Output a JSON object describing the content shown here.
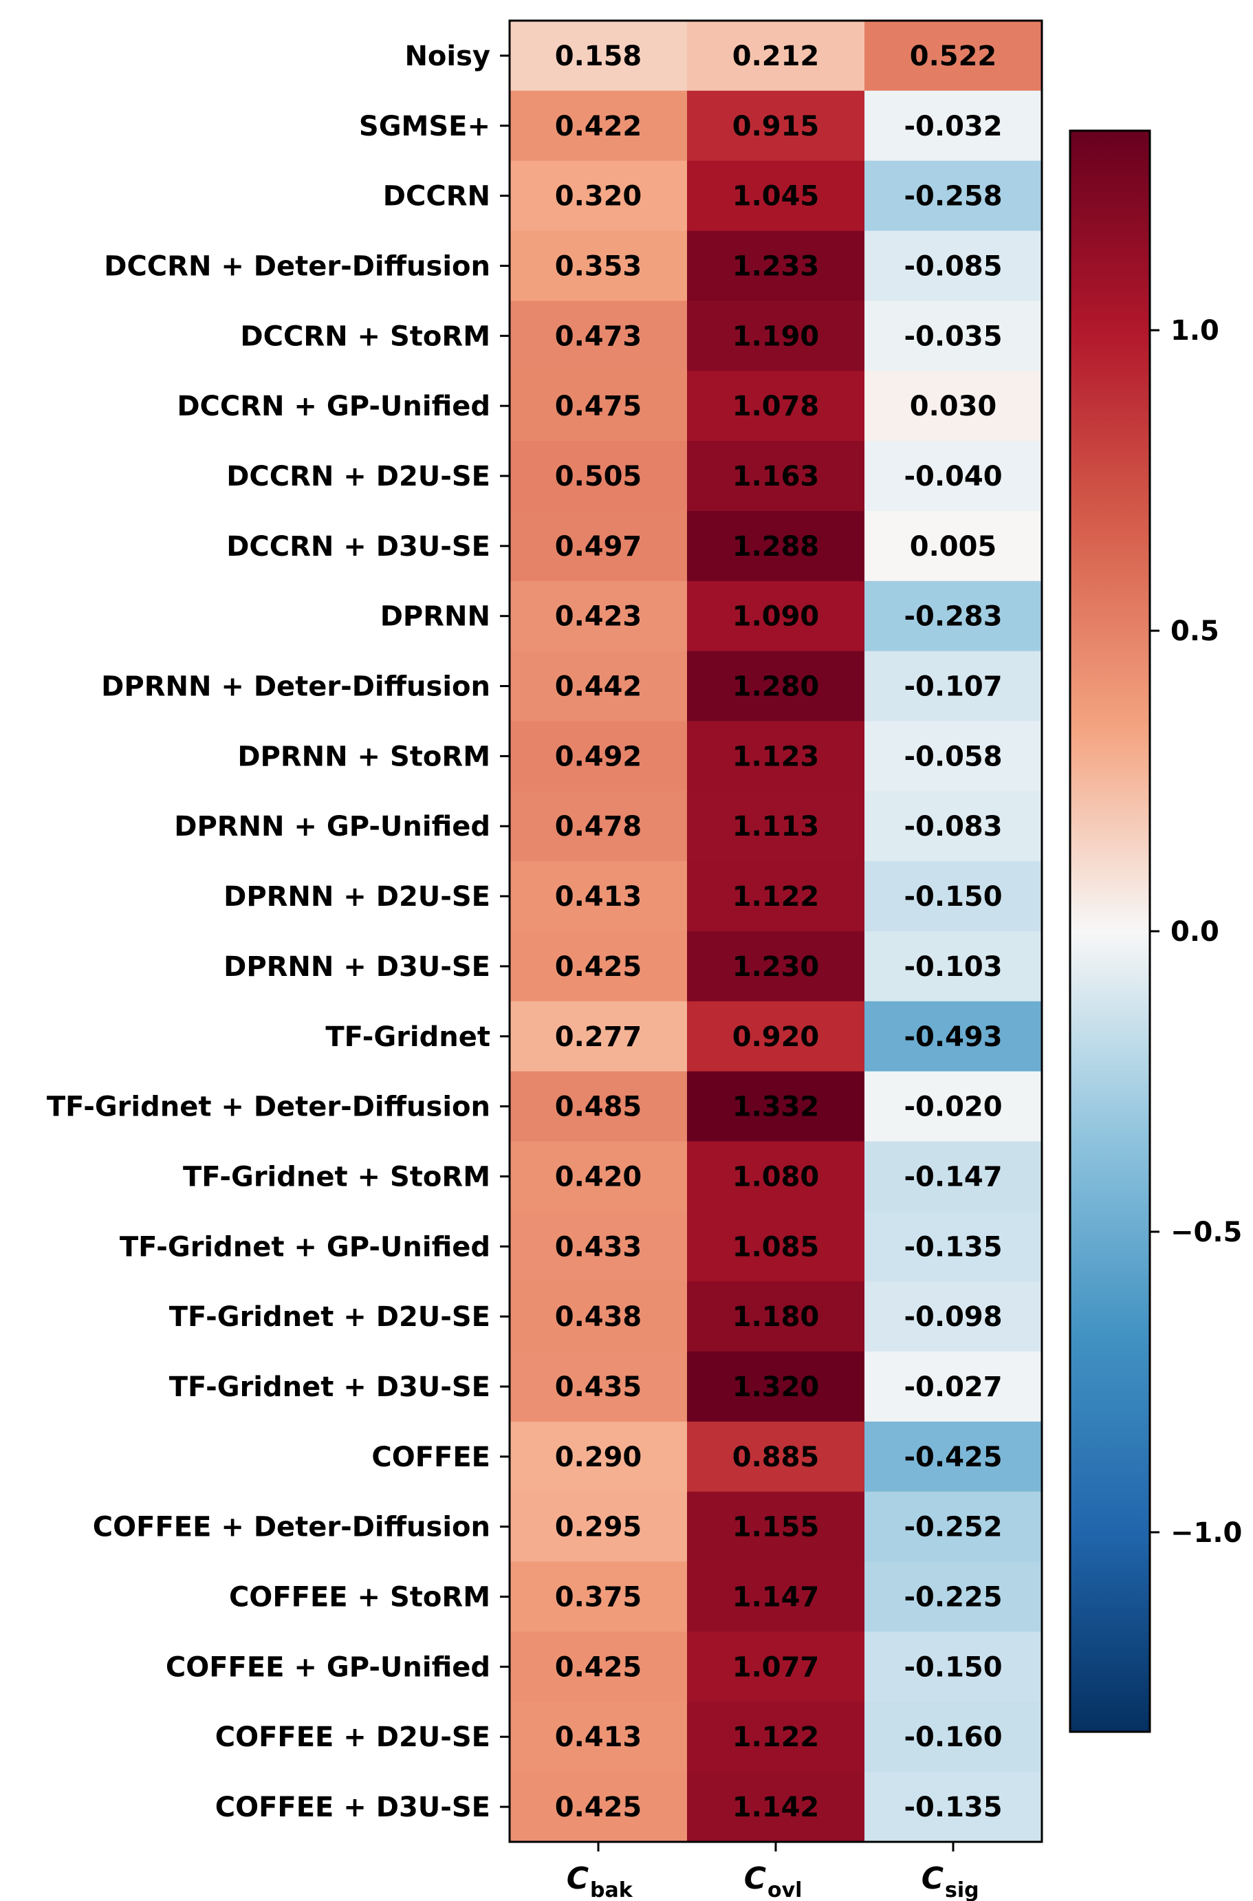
{
  "chart_data": {
    "type": "heatmap",
    "rows": [
      "Noisy",
      "SGMSE+",
      "DCCRN",
      "DCCRN + Deter-Diffusion",
      "DCCRN + StoRM",
      "DCCRN + GP-Unified",
      "DCCRN + D2U-SE",
      "DCCRN + D3U-SE",
      "DPRNN",
      "DPRNN + Deter-Diffusion",
      "DPRNN + StoRM",
      "DPRNN + GP-Unified",
      "DPRNN + D2U-SE",
      "DPRNN + D3U-SE",
      "TF-Gridnet",
      "TF-Gridnet + Deter-Diffusion",
      "TF-Gridnet + StoRM",
      "TF-Gridnet + GP-Unified",
      "TF-Gridnet + D2U-SE",
      "TF-Gridnet + D3U-SE",
      "COFFEE",
      "COFFEE + Deter-Diffusion",
      "COFFEE + StoRM",
      "COFFEE + GP-Unified",
      "COFFEE + D2U-SE",
      "COFFEE + D3U-SE"
    ],
    "columns": [
      {
        "main": "C",
        "sub": "bak"
      },
      {
        "main": "C",
        "sub": "ovl"
      },
      {
        "main": "C",
        "sub": "sig"
      }
    ],
    "values": [
      [
        0.158,
        0.212,
        0.522
      ],
      [
        0.422,
        0.915,
        -0.032
      ],
      [
        0.32,
        1.045,
        -0.258
      ],
      [
        0.353,
        1.233,
        -0.085
      ],
      [
        0.473,
        1.19,
        -0.035
      ],
      [
        0.475,
        1.078,
        0.03
      ],
      [
        0.505,
        1.163,
        -0.04
      ],
      [
        0.497,
        1.288,
        0.005
      ],
      [
        0.423,
        1.09,
        -0.283
      ],
      [
        0.442,
        1.28,
        -0.107
      ],
      [
        0.492,
        1.123,
        -0.058
      ],
      [
        0.478,
        1.113,
        -0.083
      ],
      [
        0.413,
        1.122,
        -0.15
      ],
      [
        0.425,
        1.23,
        -0.103
      ],
      [
        0.277,
        0.92,
        -0.493
      ],
      [
        0.485,
        1.332,
        -0.02
      ],
      [
        0.42,
        1.08,
        -0.147
      ],
      [
        0.433,
        1.085,
        -0.135
      ],
      [
        0.438,
        1.18,
        -0.098
      ],
      [
        0.435,
        1.32,
        -0.027
      ],
      [
        0.29,
        0.885,
        -0.425
      ],
      [
        0.295,
        1.155,
        -0.252
      ],
      [
        0.375,
        1.147,
        -0.225
      ],
      [
        0.425,
        1.077,
        -0.15
      ],
      [
        0.413,
        1.122,
        -0.16
      ],
      [
        0.425,
        1.142,
        -0.135
      ]
    ],
    "value_labels": [
      [
        "0.158",
        "0.212",
        "0.522"
      ],
      [
        "0.422",
        "0.915",
        "-0.032"
      ],
      [
        "0.320",
        "1.045",
        "-0.258"
      ],
      [
        "0.353",
        "1.233",
        "-0.085"
      ],
      [
        "0.473",
        "1.190",
        "-0.035"
      ],
      [
        "0.475",
        "1.078",
        "0.030"
      ],
      [
        "0.505",
        "1.163",
        "-0.040"
      ],
      [
        "0.497",
        "1.288",
        "0.005"
      ],
      [
        "0.423",
        "1.090",
        "-0.283"
      ],
      [
        "0.442",
        "1.280",
        "-0.107"
      ],
      [
        "0.492",
        "1.123",
        "-0.058"
      ],
      [
        "0.478",
        "1.113",
        "-0.083"
      ],
      [
        "0.413",
        "1.122",
        "-0.150"
      ],
      [
        "0.425",
        "1.230",
        "-0.103"
      ],
      [
        "0.277",
        "0.920",
        "-0.493"
      ],
      [
        "0.485",
        "1.332",
        "-0.020"
      ],
      [
        "0.420",
        "1.080",
        "-0.147"
      ],
      [
        "0.433",
        "1.085",
        "-0.135"
      ],
      [
        "0.438",
        "1.180",
        "-0.098"
      ],
      [
        "0.435",
        "1.320",
        "-0.027"
      ],
      [
        "0.290",
        "0.885",
        "-0.425"
      ],
      [
        "0.295",
        "1.155",
        "-0.252"
      ],
      [
        "0.375",
        "1.147",
        "-0.225"
      ],
      [
        "0.425",
        "1.077",
        "-0.150"
      ],
      [
        "0.413",
        "1.122",
        "-0.160"
      ],
      [
        "0.425",
        "1.142",
        "-0.135"
      ]
    ],
    "colorbar": {
      "colormap": "RdBu_r",
      "vmin": -1.332,
      "vmax": 1.332,
      "ticks": [
        1.0,
        0.5,
        0.0,
        -0.5,
        -1.0
      ],
      "tick_labels": [
        "1.0",
        "0.5",
        "0.0",
        "−0.5",
        "−1.0"
      ]
    }
  }
}
